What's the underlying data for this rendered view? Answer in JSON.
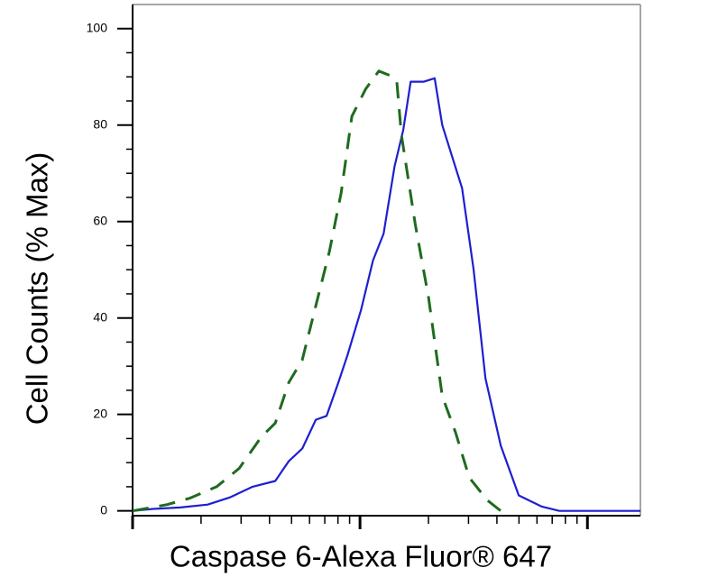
{
  "chart_data": {
    "type": "line",
    "ylabel": "Cell Counts (% Max)",
    "xlabel": "Caspase 6-Alexa Fluor® 647",
    "xscale": "log",
    "xlim": [
      1,
      171
    ],
    "xticks": [
      1,
      10,
      100
    ],
    "xminorticks": [
      2,
      3,
      4,
      5,
      6,
      7,
      8,
      9,
      20,
      30,
      40,
      50,
      60,
      70,
      80,
      90
    ],
    "ylim": [
      -1,
      105
    ],
    "yticks": [
      0,
      20,
      40,
      60,
      80,
      100
    ],
    "yminorticks": [
      5,
      10,
      15,
      25,
      30,
      35,
      45,
      50,
      55,
      65,
      70,
      75,
      85,
      90,
      95
    ],
    "series": [
      {
        "color": "#1f1fd0",
        "linestyle": "solid",
        "x": [
          1,
          1.23,
          1.62,
          2.14,
          2.68,
          3.37,
          4.24,
          4.86,
          5.57,
          6.39,
          7.13,
          8.03,
          8.8,
          10.1,
          11.4,
          12.7,
          14.2,
          15.5,
          16.7,
          19.1,
          21.3,
          23.0,
          28.1,
          31.6,
          35.6,
          41.6,
          49.9,
          62.8,
          75.3,
          171
        ],
        "values": [
          0,
          0.4,
          0.7,
          1.3,
          2.8,
          5,
          6.2,
          10.3,
          12.9,
          18.9,
          19.7,
          26.6,
          32.2,
          41.6,
          51.9,
          57.5,
          71.5,
          79,
          89,
          89,
          89.7,
          80,
          66.9,
          50,
          27.5,
          13.5,
          3.2,
          0.9,
          0,
          0
        ]
      },
      {
        "color": "#1e6b1e",
        "linestyle": "dashed",
        "x": [
          1,
          1.42,
          1.78,
          2.34,
          2.94,
          3.69,
          4.24,
          4.86,
          5.57,
          6.39,
          7.33,
          8.26,
          9.21,
          10.6,
          12.1,
          13.5,
          14.5,
          15.2,
          17.5,
          20.0,
          23.0,
          26.3,
          30.2,
          36.3,
          41.6
        ],
        "values": [
          0,
          1.3,
          2.6,
          5,
          8.8,
          15.4,
          18.2,
          26.6,
          31.3,
          42.5,
          53.7,
          65.9,
          81.8,
          87.5,
          91.2,
          90.3,
          89.3,
          78,
          59.4,
          44.4,
          23.8,
          16.3,
          6.9,
          2.2,
          0
        ]
      }
    ]
  }
}
